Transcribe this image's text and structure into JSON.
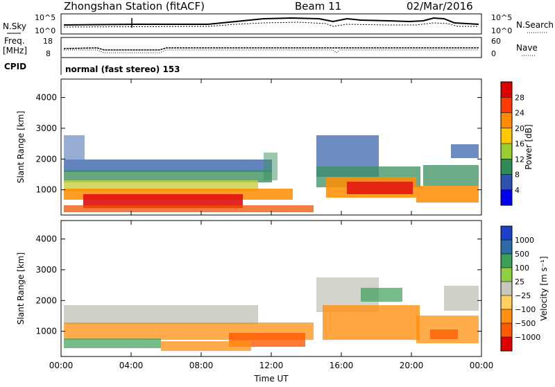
{
  "header": {
    "title": "Zhongshan Station (fitACF)",
    "beam": "Beam 11",
    "date": "02/Mar/2016"
  },
  "sky_panel": {
    "left_label": "N.Sky",
    "right_label": "N.Search",
    "left_ticks": [
      "10^5",
      "10^0"
    ],
    "right_ticks": [
      "10^5",
      "10^0"
    ]
  },
  "freq_panel": {
    "left_label_1": "Freq.",
    "left_label_2": "[MHz]",
    "left_ticks": [
      "18",
      "8"
    ],
    "right_label": "Nave",
    "right_ticks": [
      "60",
      "0"
    ]
  },
  "cpid": {
    "label": "CPID",
    "text": "normal (fast stereo) 153"
  },
  "chart_data": [
    {
      "type": "heatmap",
      "name": "power",
      "xlabel": "",
      "ylabel": "Slant Range [km]",
      "xlim": [
        "00:00",
        "00:00"
      ],
      "ylim": [
        180,
        4600
      ],
      "yticks": [
        "4000",
        "3000",
        "2000",
        "1000"
      ],
      "colorbar_label": "Power [dB]",
      "colorbar_ticks": [
        "28",
        "24",
        "20",
        "16",
        "12",
        "8",
        "4"
      ],
      "colorbar_colors": [
        "#dd0000",
        "#ff3a00",
        "#ff8c00",
        "#ffc800",
        "#9acd32",
        "#2e8b57",
        "#3050b0",
        "#0000ee"
      ]
    },
    {
      "type": "heatmap",
      "name": "velocity",
      "xlabel": "Time UT",
      "ylabel": "Slant Range [km]",
      "xlim": [
        "00:00",
        "00:00"
      ],
      "ylim": [
        180,
        4600
      ],
      "yticks": [
        "4000",
        "3000",
        "2000",
        "1000"
      ],
      "xticks": [
        "00:00",
        "04:00",
        "08:00",
        "12:00",
        "16:00",
        "20:00",
        "00:00"
      ],
      "colorbar_label": "Velocity [m s⁻¹]",
      "colorbar_ticks": [
        "1000",
        "500",
        "100",
        "25",
        "−25",
        "−100",
        "−500",
        "−1000"
      ],
      "colorbar_colors": [
        "#1e40c8",
        "#2e6aa8",
        "#3aa058",
        "#8fcf40",
        "#c8c8be",
        "#ffd060",
        "#ff9010",
        "#ff5a00",
        "#e00000"
      ]
    }
  ]
}
